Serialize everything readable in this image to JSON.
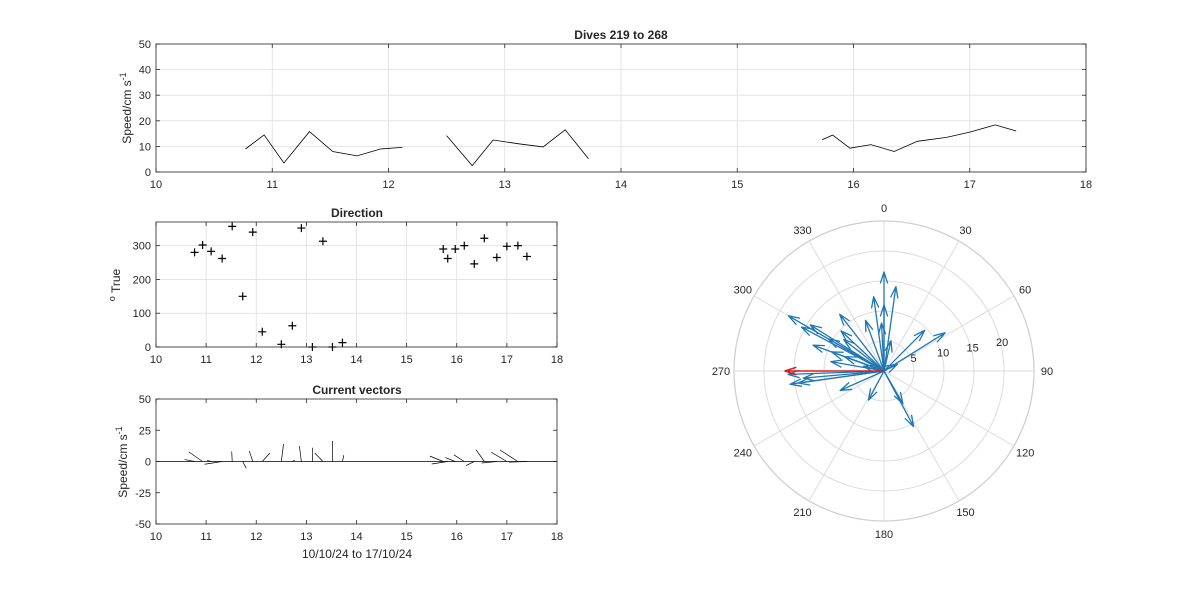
{
  "figure_bg": "#ffffff",
  "colors": {
    "axis": "#262626",
    "grid": "#dfdfdf",
    "line": "#000000",
    "polar_grid": "#dcdcdc",
    "polar_vec": "#1f77b4",
    "polar_mean": "#e0191b"
  },
  "chart_data": [
    {
      "id": "speed",
      "type": "line",
      "title": "Dives 219 to 268",
      "xlabel": "",
      "ylabel": "Speed/cm s",
      "ylabel_sup": "-1",
      "xlim": [
        10,
        18
      ],
      "ylim": [
        0,
        50
      ],
      "xticks": [
        10,
        11,
        12,
        13,
        14,
        15,
        16,
        17,
        18
      ],
      "yticks": [
        0,
        10,
        20,
        30,
        40,
        50
      ],
      "grid": true,
      "segments": [
        [
          [
            10.77,
            9
          ],
          [
            10.93,
            14.5
          ],
          [
            11.1,
            3.5
          ],
          [
            11.32,
            15.8
          ],
          [
            11.52,
            8
          ],
          [
            11.73,
            6.3
          ],
          [
            11.93,
            9
          ],
          [
            12.12,
            9.6
          ]
        ],
        [
          [
            12.5,
            14.2
          ],
          [
            12.72,
            2.5
          ],
          [
            12.9,
            12.5
          ],
          [
            13.12,
            11
          ],
          [
            13.33,
            9.8
          ],
          [
            13.52,
            16.5
          ],
          [
            13.72,
            5.2
          ]
        ],
        [
          [
            15.73,
            12.6
          ],
          [
            15.82,
            14.4
          ],
          [
            15.97,
            9.3
          ],
          [
            16.15,
            10.7
          ],
          [
            16.35,
            8
          ],
          [
            16.55,
            12
          ],
          [
            16.8,
            13.5
          ],
          [
            17.0,
            15.6
          ],
          [
            17.22,
            18.4
          ],
          [
            17.4,
            16
          ]
        ]
      ]
    },
    {
      "id": "direction",
      "type": "scatter",
      "title": "Direction",
      "xlabel": "",
      "ylabel": "True",
      "ylabel_sup": "o",
      "xlim": [
        10,
        18
      ],
      "ylim": [
        0,
        370
      ],
      "xticks": [
        10,
        11,
        12,
        13,
        14,
        15,
        16,
        17,
        18
      ],
      "yticks": [
        0,
        100,
        200,
        300
      ],
      "grid": true,
      "marker": "+",
      "points": [
        [
          10.77,
          280
        ],
        [
          10.93,
          302
        ],
        [
          11.1,
          283
        ],
        [
          11.32,
          262
        ],
        [
          11.52,
          357
        ],
        [
          11.73,
          150
        ],
        [
          11.93,
          340
        ],
        [
          12.12,
          45
        ],
        [
          12.5,
          8
        ],
        [
          12.72,
          63
        ],
        [
          12.9,
          352
        ],
        [
          13.12,
          0
        ],
        [
          13.33,
          313
        ],
        [
          13.52,
          0
        ],
        [
          13.72,
          13
        ],
        [
          15.73,
          290
        ],
        [
          15.82,
          262
        ],
        [
          15.97,
          290
        ],
        [
          16.15,
          300
        ],
        [
          16.35,
          246
        ],
        [
          16.55,
          322
        ],
        [
          16.8,
          265
        ],
        [
          17.0,
          298
        ],
        [
          17.22,
          300
        ],
        [
          17.4,
          268
        ]
      ]
    },
    {
      "id": "vectors",
      "type": "line",
      "title": "Current vectors",
      "xlabel": "10/10/24 to 17/10/24",
      "ylabel": "Speed/cm s",
      "ylabel_sup": "-1",
      "xlim": [
        10,
        18
      ],
      "ylim": [
        -50,
        50
      ],
      "xticks": [
        10,
        11,
        12,
        13,
        14,
        15,
        16,
        17,
        18
      ],
      "yticks": [
        -50,
        -25,
        0,
        25,
        50
      ],
      "grid": false,
      "sticks": [
        {
          "t": 10.77,
          "speed": 9,
          "dir": 280
        },
        {
          "t": 10.93,
          "speed": 14.5,
          "dir": 302
        },
        {
          "t": 11.1,
          "speed": 3.5,
          "dir": 283
        },
        {
          "t": 11.32,
          "speed": 15.8,
          "dir": 262
        },
        {
          "t": 11.52,
          "speed": 8,
          "dir": 357
        },
        {
          "t": 11.73,
          "speed": 6.3,
          "dir": 150
        },
        {
          "t": 11.93,
          "speed": 9,
          "dir": 340
        },
        {
          "t": 12.12,
          "speed": 9.6,
          "dir": 45
        },
        {
          "t": 12.5,
          "speed": 14.2,
          "dir": 8
        },
        {
          "t": 12.72,
          "speed": 2.5,
          "dir": 63
        },
        {
          "t": 12.9,
          "speed": 12.5,
          "dir": 352
        },
        {
          "t": 13.12,
          "speed": 11,
          "dir": 0
        },
        {
          "t": 13.33,
          "speed": 9.8,
          "dir": 313
        },
        {
          "t": 13.52,
          "speed": 16.5,
          "dir": 0
        },
        {
          "t": 13.72,
          "speed": 5.2,
          "dir": 13
        },
        {
          "t": 15.73,
          "speed": 12.6,
          "dir": 290
        },
        {
          "t": 15.82,
          "speed": 14.4,
          "dir": 262
        },
        {
          "t": 15.97,
          "speed": 9.3,
          "dir": 290
        },
        {
          "t": 16.15,
          "speed": 10.7,
          "dir": 300
        },
        {
          "t": 16.35,
          "speed": 8,
          "dir": 246
        },
        {
          "t": 16.55,
          "speed": 12,
          "dir": 322
        },
        {
          "t": 16.8,
          "speed": 13.5,
          "dir": 265
        },
        {
          "t": 17.0,
          "speed": 15.6,
          "dir": 298
        },
        {
          "t": 17.22,
          "speed": 18.4,
          "dir": 300
        },
        {
          "t": 17.4,
          "speed": 16,
          "dir": 268
        }
      ]
    },
    {
      "id": "polar",
      "type": "scatter",
      "title": "",
      "rlim": [
        0,
        25
      ],
      "rticks": [
        5,
        10,
        15,
        20
      ],
      "theta_ticks": [
        0,
        30,
        60,
        90,
        120,
        150,
        180,
        210,
        240,
        270,
        300,
        330
      ],
      "theta_zero": "top",
      "theta_direction": "clockwise",
      "vectors": [
        {
          "speed": 9,
          "dir": 280
        },
        {
          "speed": 14.5,
          "dir": 302
        },
        {
          "speed": 3.5,
          "dir": 283
        },
        {
          "speed": 15.8,
          "dir": 262
        },
        {
          "speed": 8,
          "dir": 357
        },
        {
          "speed": 6.3,
          "dir": 150
        },
        {
          "speed": 9,
          "dir": 340
        },
        {
          "speed": 9.6,
          "dir": 45
        },
        {
          "speed": 14.2,
          "dir": 8
        },
        {
          "speed": 2.5,
          "dir": 63
        },
        {
          "speed": 12.5,
          "dir": 352
        },
        {
          "speed": 11,
          "dir": 0
        },
        {
          "speed": 9.8,
          "dir": 313
        },
        {
          "speed": 16.5,
          "dir": 0
        },
        {
          "speed": 5.2,
          "dir": 13
        },
        {
          "speed": 12.6,
          "dir": 290
        },
        {
          "speed": 14.4,
          "dir": 262
        },
        {
          "speed": 9.3,
          "dir": 290
        },
        {
          "speed": 10.7,
          "dir": 300
        },
        {
          "speed": 8,
          "dir": 246
        },
        {
          "speed": 12,
          "dir": 322
        },
        {
          "speed": 13.5,
          "dir": 265
        },
        {
          "speed": 15.6,
          "dir": 298
        },
        {
          "speed": 18.4,
          "dir": 300
        },
        {
          "speed": 16,
          "dir": 268
        },
        {
          "speed": 5.5,
          "dir": 208
        },
        {
          "speed": 10.5,
          "dir": 152
        },
        {
          "speed": 12,
          "dir": 58
        },
        {
          "speed": 7,
          "dir": 290
        },
        {
          "speed": 8.5,
          "dir": 308
        }
      ],
      "mean_vector": {
        "speed": 16.5,
        "dir": 270
      }
    }
  ]
}
